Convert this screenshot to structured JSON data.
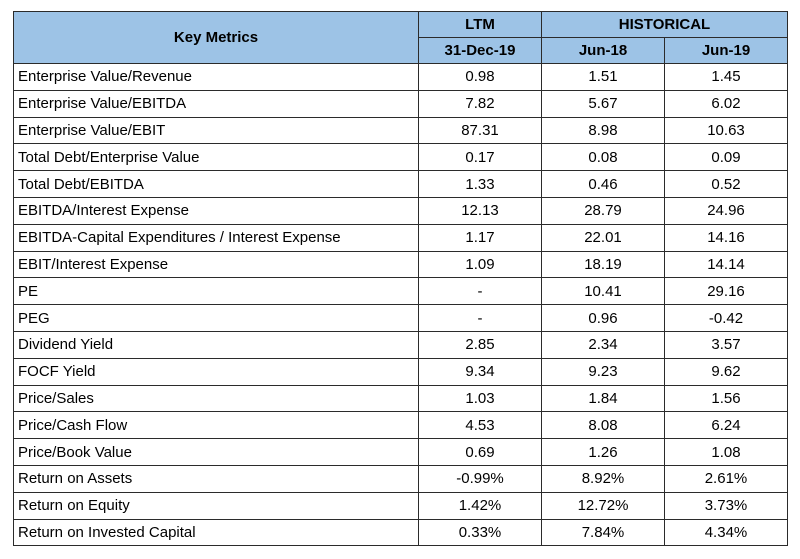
{
  "header": {
    "key_metrics": "Key Metrics",
    "ltm": "LTM",
    "historical": "HISTORICAL",
    "ltm_date": "31-Dec-19",
    "hist_col1": "Jun-18",
    "hist_col2": "Jun-19"
  },
  "colors": {
    "header_background": "#9dc3e6",
    "border": "#2b2b2b"
  },
  "rows": [
    {
      "metric": "Enterprise Value/Revenue",
      "ltm": "0.98",
      "jun18": "1.51",
      "jun19": "1.45"
    },
    {
      "metric": "Enterprise Value/EBITDA",
      "ltm": "7.82",
      "jun18": "5.67",
      "jun19": "6.02"
    },
    {
      "metric": "Enterprise Value/EBIT",
      "ltm": "87.31",
      "jun18": "8.98",
      "jun19": "10.63"
    },
    {
      "metric": "Total Debt/Enterprise Value",
      "ltm": "0.17",
      "jun18": "0.08",
      "jun19": "0.09"
    },
    {
      "metric": "Total Debt/EBITDA",
      "ltm": "1.33",
      "jun18": "0.46",
      "jun19": "0.52"
    },
    {
      "metric": "EBITDA/Interest Expense",
      "ltm": "12.13",
      "jun18": "28.79",
      "jun19": "24.96"
    },
    {
      "metric": "EBITDA-Capital Expenditures / Interest Expense",
      "ltm": "1.17",
      "jun18": "22.01",
      "jun19": "14.16"
    },
    {
      "metric": "EBIT/Interest Expense",
      "ltm": "1.09",
      "jun18": "18.19",
      "jun19": "14.14"
    },
    {
      "metric": "PE",
      "ltm": "-",
      "jun18": "10.41",
      "jun19": "29.16"
    },
    {
      "metric": "PEG",
      "ltm": "-",
      "jun18": "0.96",
      "jun19": "-0.42"
    },
    {
      "metric": "Dividend Yield",
      "ltm": "2.85",
      "jun18": "2.34",
      "jun19": "3.57"
    },
    {
      "metric": "FOCF Yield",
      "ltm": "9.34",
      "jun18": "9.23",
      "jun19": "9.62"
    },
    {
      "metric": "Price/Sales",
      "ltm": "1.03",
      "jun18": "1.84",
      "jun19": "1.56"
    },
    {
      "metric": "Price/Cash Flow",
      "ltm": "4.53",
      "jun18": "8.08",
      "jun19": "6.24"
    },
    {
      "metric": "Price/Book Value",
      "ltm": "0.69",
      "jun18": "1.26",
      "jun19": "1.08"
    },
    {
      "metric": "Return on Assets",
      "ltm": "-0.99%",
      "jun18": "8.92%",
      "jun19": "2.61%"
    },
    {
      "metric": "Return on Equity",
      "ltm": "1.42%",
      "jun18": "12.72%",
      "jun19": "3.73%"
    },
    {
      "metric": "Return on Invested Capital",
      "ltm": "0.33%",
      "jun18": "7.84%",
      "jun19": "4.34%"
    }
  ]
}
